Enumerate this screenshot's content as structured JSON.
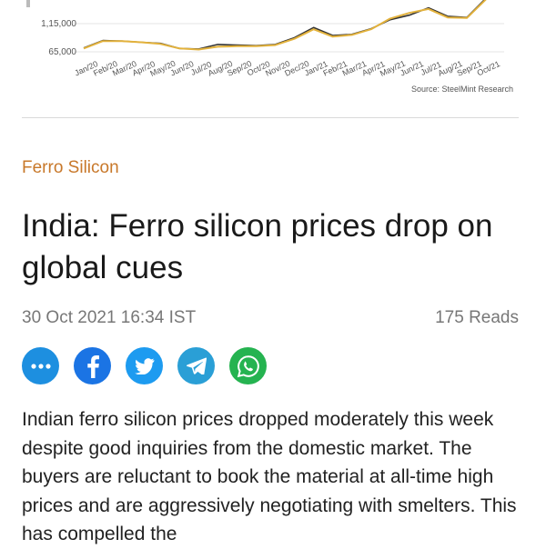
{
  "chart_data": {
    "type": "line",
    "title": "",
    "xlabel": "",
    "ylabel": "",
    "ylim": [
      65000,
      165000
    ],
    "yticks": [
      "65,000",
      "1,15,000"
    ],
    "categories": [
      "Jan/20",
      "Feb/20",
      "Mar/20",
      "Apr/20",
      "May/20",
      "Jun/20",
      "Jul/20",
      "Aug/20",
      "Sep/20",
      "Oct/20",
      "Nov/20",
      "Dec/20",
      "Jan/21",
      "Feb/21",
      "Mar/21",
      "Apr/21",
      "May/21",
      "Jun/21",
      "Jul/21",
      "Aug/21",
      "Sep/21",
      "Oct/21"
    ],
    "series": [
      {
        "color": "#333333",
        "values": [
          72000,
          85000,
          84000,
          82000,
          80000,
          71000,
          70000,
          78000,
          77000,
          76000,
          78000,
          90000,
          108000,
          94000,
          96000,
          106000,
          122000,
          130000,
          143000,
          128000,
          126000,
          160000
        ]
      },
      {
        "color": "#e3b23c",
        "values": [
          71000,
          84000,
          84000,
          82000,
          79000,
          71000,
          69000,
          74000,
          75000,
          75000,
          77000,
          88000,
          105000,
          92000,
          95000,
          105000,
          124000,
          134000,
          141000,
          126000,
          125000,
          158000
        ]
      }
    ],
    "source": "Source: SteelMint Research"
  },
  "article": {
    "category": "Ferro Silicon",
    "headline": "India: Ferro silicon prices drop on global cues",
    "date": "30 Oct 2021 16:34 IST",
    "reads": "175 Reads",
    "body": "Indian ferro silicon prices dropped moderately this week despite good inquiries from the domestic market. The buyers are reluctant to book the material at all-time high prices and are aggressively negotiating with smelters. This has compelled the"
  },
  "share": {
    "colors": {
      "more": "#1d8fe0",
      "facebook": "#1b74e4",
      "twitter": "#1d9bf0",
      "telegram": "#2a9fd6",
      "whatsapp": "#25b350"
    },
    "icons": [
      "more-icon",
      "facebook-icon",
      "twitter-icon",
      "telegram-icon",
      "whatsapp-icon"
    ]
  }
}
